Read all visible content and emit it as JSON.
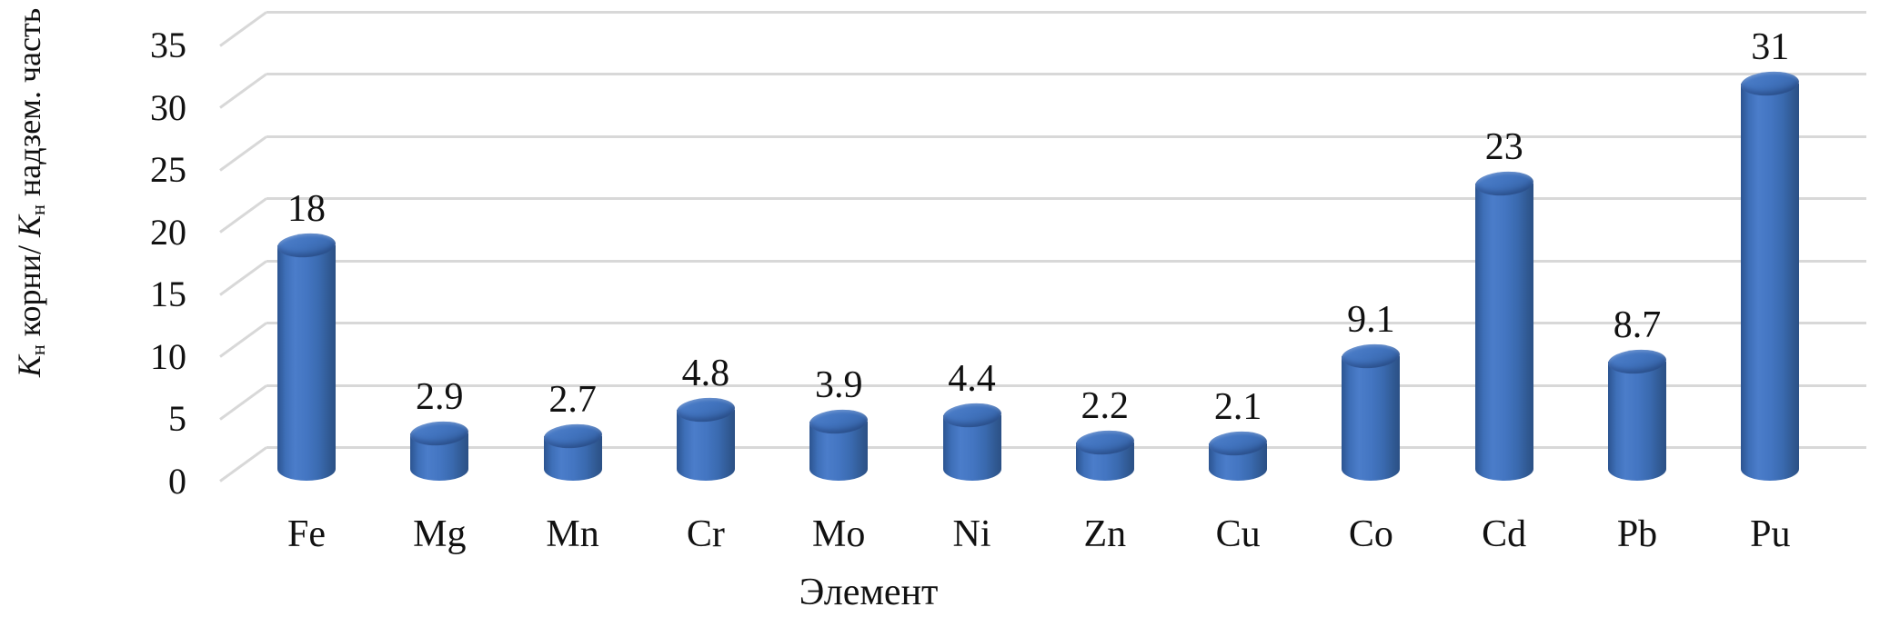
{
  "chart_data": {
    "type": "bar",
    "subtype": "cylinder-3d",
    "title": "",
    "xlabel": "Элемент",
    "ylabel": "Kн корни/ Kн надзем. часть",
    "ylabel_segments": [
      {
        "text": "K",
        "style": "italic"
      },
      {
        "text": "н",
        "style": "subscript"
      },
      {
        "text": " корни/ ",
        "style": "normal"
      },
      {
        "text": "K",
        "style": "italic"
      },
      {
        "text": "н",
        "style": "subscript"
      },
      {
        "text": " надзем. часть",
        "style": "normal"
      }
    ],
    "categories": [
      "Fe",
      "Mg",
      "Mn",
      "Cr",
      "Mo",
      "Ni",
      "Zn",
      "Cu",
      "Co",
      "Cd",
      "Pb",
      "Pu"
    ],
    "values": [
      18,
      2.9,
      2.7,
      4.8,
      3.9,
      4.4,
      2.2,
      2.1,
      9.1,
      23,
      8.7,
      31
    ],
    "data_labels": [
      "18",
      "2.9",
      "2.7",
      "4.8",
      "3.9",
      "4.4",
      "2.2",
      "2.1",
      "9.1",
      "23",
      "8.7",
      "31"
    ],
    "yticks": [
      0,
      5,
      10,
      15,
      20,
      25,
      30,
      35
    ],
    "ytick_labels": [
      "0",
      "5",
      "10",
      "15",
      "20",
      "25",
      "30",
      "35"
    ],
    "ylim": [
      0,
      35
    ],
    "grid": true,
    "legend": "none",
    "bar_color": "#3A6CB4",
    "gridline_color": "#D8D8D8",
    "text_color": "#111111"
  }
}
